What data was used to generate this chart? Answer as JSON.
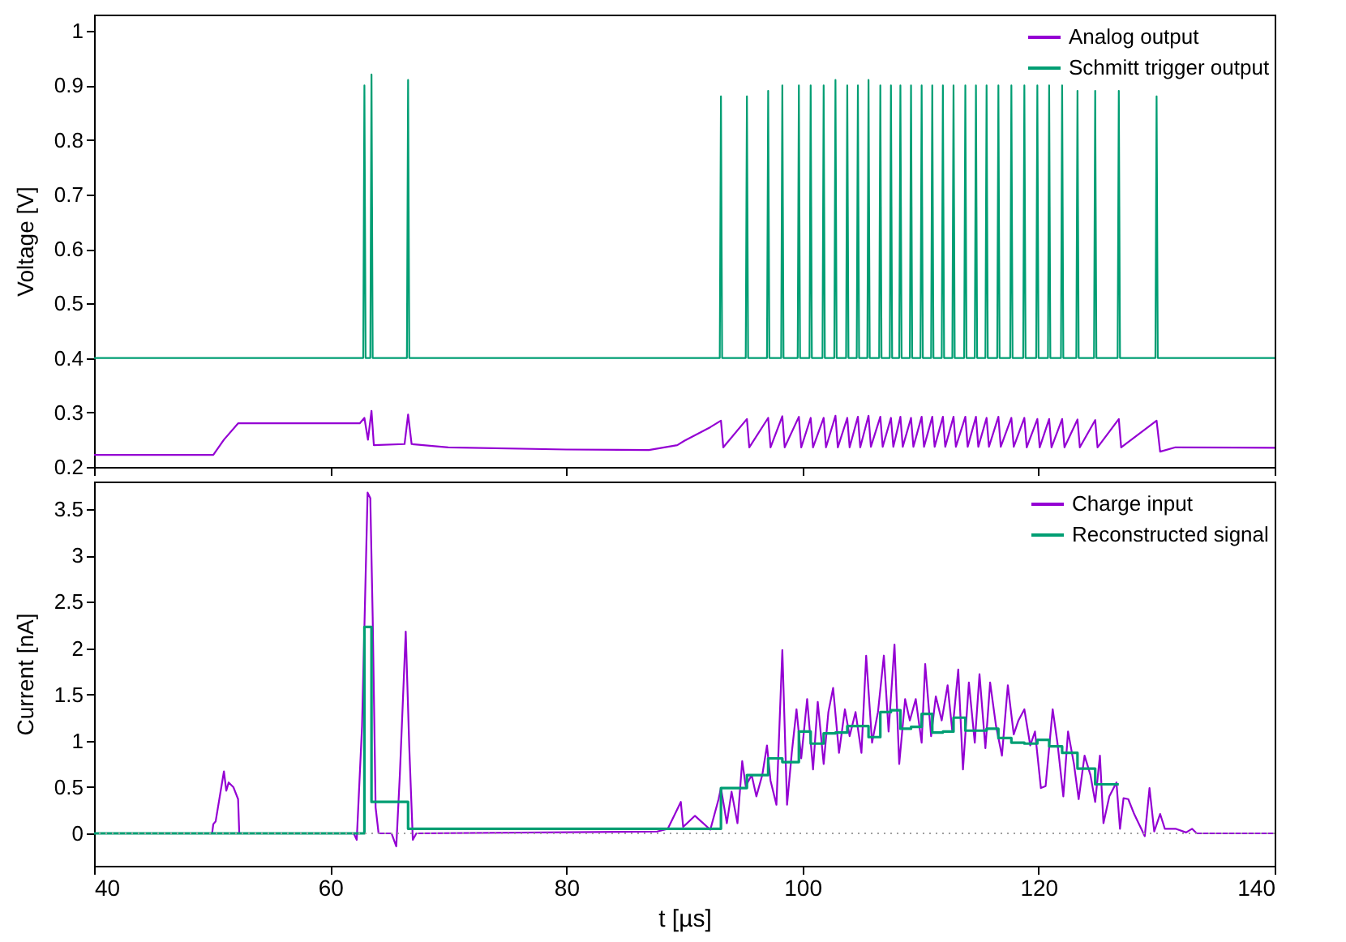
{
  "chart_data": [
    {
      "type": "line",
      "ylabel": "Voltage [V]",
      "xlim": [
        40,
        140
      ],
      "xticks": [
        40,
        60,
        80,
        100,
        120,
        140
      ],
      "ylim": [
        0.2,
        1.03
      ],
      "yticks": [
        0.2,
        0.3,
        0.4,
        0.5,
        0.6,
        0.7,
        0.8,
        0.9,
        1
      ],
      "tick_labels": "y",
      "legend": "top right",
      "series": [
        {
          "name": "Analog output",
          "type": "line",
          "color": "#9400d3",
          "x": [
            40,
            50.1,
            51,
            52.2,
            62.5,
            62.9,
            63.2,
            63.5,
            63.7,
            66.3,
            66.6,
            66.9,
            70,
            80,
            87,
            89.4,
            90,
            92.2,
            93.1,
            93.3,
            95.3,
            95.5,
            97.1,
            97.3,
            98.3,
            98.5,
            99.7,
            99.9,
            100.7,
            100.9,
            101.8,
            102.0,
            102.8,
            103.0,
            103.8,
            104.0,
            104.7,
            104.9,
            105.6,
            105.8,
            106.6,
            106.8,
            107.5,
            107.7,
            108.3,
            108.5,
            109.2,
            109.4,
            110.1,
            110.3,
            111.0,
            111.2,
            111.9,
            112.1,
            112.8,
            113.0,
            113.8,
            114.0,
            114.7,
            114.9,
            115.6,
            115.8,
            116.6,
            116.8,
            117.7,
            117.9,
            118.8,
            119.0,
            119.9,
            120.1,
            120.9,
            121.1,
            122.0,
            122.2,
            123.3,
            123.5,
            124.8,
            125.0,
            126.8,
            127.0,
            130.0,
            130.3,
            131.6,
            140
          ],
          "values": [
            0.222,
            0.222,
            0.25,
            0.28,
            0.28,
            0.29,
            0.25,
            0.303,
            0.24,
            0.242,
            0.296,
            0.242,
            0.236,
            0.232,
            0.231,
            0.24,
            0.248,
            0.273,
            0.285,
            0.236,
            0.288,
            0.236,
            0.29,
            0.236,
            0.293,
            0.236,
            0.292,
            0.236,
            0.29,
            0.236,
            0.29,
            0.236,
            0.294,
            0.236,
            0.29,
            0.236,
            0.292,
            0.236,
            0.294,
            0.237,
            0.292,
            0.237,
            0.29,
            0.237,
            0.292,
            0.237,
            0.29,
            0.237,
            0.292,
            0.237,
            0.292,
            0.237,
            0.292,
            0.237,
            0.292,
            0.237,
            0.292,
            0.237,
            0.292,
            0.237,
            0.29,
            0.237,
            0.292,
            0.237,
            0.29,
            0.237,
            0.29,
            0.236,
            0.288,
            0.236,
            0.288,
            0.236,
            0.288,
            0.236,
            0.287,
            0.236,
            0.286,
            0.236,
            0.288,
            0.236,
            0.285,
            0.228,
            0.236,
            0.235
          ]
        },
        {
          "name": "Schmitt trigger output",
          "type": "line",
          "color": "#009e73",
          "x": [
            40,
            62.8,
            62.9,
            63.0,
            63.4,
            63.5,
            63.6,
            66.5,
            66.6,
            66.7,
            93.0,
            93.1,
            93.2,
            95.2,
            95.3,
            95.4,
            97.0,
            97.1,
            97.2,
            98.2,
            98.3,
            98.4,
            99.6,
            99.7,
            99.8,
            100.6,
            100.7,
            100.8,
            101.7,
            101.8,
            101.9,
            102.7,
            102.8,
            102.9,
            103.7,
            103.8,
            103.9,
            104.6,
            104.7,
            104.8,
            105.5,
            105.6,
            105.7,
            106.5,
            106.6,
            106.7,
            107.4,
            107.5,
            107.6,
            108.2,
            108.3,
            108.4,
            109.1,
            109.2,
            109.3,
            110.0,
            110.1,
            110.2,
            110.9,
            111.0,
            111.1,
            111.8,
            111.9,
            112.0,
            112.7,
            112.8,
            112.9,
            113.7,
            113.8,
            113.9,
            114.6,
            114.7,
            114.8,
            115.5,
            115.6,
            115.7,
            116.5,
            116.6,
            116.7,
            117.6,
            117.7,
            117.8,
            118.7,
            118.8,
            118.9,
            119.8,
            119.9,
            120.0,
            120.8,
            120.9,
            121.0,
            121.9,
            122.0,
            122.1,
            123.2,
            123.3,
            123.4,
            124.7,
            124.8,
            124.9,
            126.7,
            126.8,
            126.9,
            129.9,
            130.0,
            130.1,
            140
          ],
          "values": [
            0.4,
            0.4,
            0.9,
            0.4,
            0.4,
            0.92,
            0.4,
            0.4,
            0.91,
            0.4,
            0.4,
            0.88,
            0.4,
            0.4,
            0.88,
            0.4,
            0.4,
            0.89,
            0.4,
            0.4,
            0.9,
            0.4,
            0.4,
            0.9,
            0.4,
            0.4,
            0.9,
            0.4,
            0.4,
            0.9,
            0.4,
            0.4,
            0.91,
            0.4,
            0.4,
            0.9,
            0.4,
            0.4,
            0.9,
            0.4,
            0.4,
            0.91,
            0.4,
            0.4,
            0.9,
            0.4,
            0.4,
            0.9,
            0.4,
            0.4,
            0.9,
            0.4,
            0.4,
            0.9,
            0.4,
            0.4,
            0.9,
            0.4,
            0.4,
            0.9,
            0.4,
            0.4,
            0.9,
            0.4,
            0.4,
            0.9,
            0.4,
            0.4,
            0.9,
            0.4,
            0.4,
            0.9,
            0.4,
            0.4,
            0.9,
            0.4,
            0.4,
            0.9,
            0.4,
            0.4,
            0.9,
            0.4,
            0.4,
            0.9,
            0.4,
            0.4,
            0.9,
            0.4,
            0.4,
            0.9,
            0.4,
            0.4,
            0.9,
            0.4,
            0.4,
            0.89,
            0.4,
            0.4,
            0.89,
            0.4,
            0.4,
            0.89,
            0.4,
            0.4,
            0.88,
            0.4,
            0.4
          ]
        }
      ]
    },
    {
      "type": "line",
      "xlabel": "t [µs]",
      "ylabel": "Current [nA]",
      "xlim": [
        40,
        140
      ],
      "xticks": [
        40,
        60,
        80,
        100,
        120,
        140
      ],
      "ylim": [
        -0.35,
        3.8
      ],
      "yticks": [
        0,
        0.5,
        1,
        1.5,
        2,
        2.5,
        3,
        3.5
      ],
      "legend": "top right",
      "ref_lines": [
        {
          "axis": "y",
          "value": 0,
          "color": "#a0a0a0",
          "line_style": "dotted"
        }
      ],
      "series": [
        {
          "name": "Charge input",
          "type": "line",
          "color": "#9400d3",
          "x": [
            40,
            50.0,
            50.1,
            50.3,
            51.0,
            51.2,
            51.4,
            51.8,
            52.2,
            52.3,
            62.0,
            62.25,
            62.7,
            63.17,
            63.4,
            63.6,
            63.85,
            64.1,
            65.2,
            65.6,
            65.9,
            66.4,
            66.7,
            67.0,
            67.3,
            87.7,
            88.6,
            89.7,
            89.9,
            90.9,
            92.2,
            92.9,
            93.1,
            93.6,
            94.0,
            94.5,
            94.9,
            95.2,
            95.7,
            96.1,
            96.6,
            97.0,
            97.3,
            97.8,
            98.3,
            98.7,
            99.1,
            99.5,
            99.9,
            100.4,
            100.9,
            101.3,
            101.8,
            102.2,
            102.6,
            103.1,
            103.6,
            104.0,
            104.5,
            105.0,
            105.4,
            105.9,
            106.4,
            106.9,
            107.3,
            107.8,
            108.2,
            108.7,
            109.1,
            109.6,
            110.1,
            110.4,
            110.9,
            111.3,
            111.8,
            112.3,
            112.7,
            113.2,
            113.6,
            114.1,
            114.6,
            115.0,
            115.5,
            115.9,
            116.4,
            116.9,
            117.4,
            117.9,
            118.3,
            118.8,
            119.3,
            119.7,
            120.2,
            120.6,
            121.2,
            121.6,
            122.1,
            122.5,
            123.0,
            123.4,
            123.9,
            124.4,
            124.8,
            125.2,
            125.5,
            126.0,
            126.6,
            126.9,
            127.2,
            127.6,
            128.1,
            128.7,
            129.0,
            129.4,
            129.8,
            130.3,
            130.7,
            131.6,
            132.5,
            133.0,
            133.4,
            139.9,
            140
          ],
          "values": [
            0,
            0,
            0.1,
            0.13,
            0.67,
            0.46,
            0.55,
            0.5,
            0.37,
            0,
            0,
            -0.07,
            1.16,
            3.68,
            3.62,
            2.34,
            0.28,
            0,
            0,
            -0.14,
            0.63,
            2.18,
            0.93,
            -0.07,
            0,
            0.02,
            0.05,
            0.34,
            0.07,
            0.19,
            0.04,
            0.37,
            0.49,
            0.11,
            0.45,
            0.11,
            0.78,
            0.51,
            0.63,
            0.4,
            0.63,
            0.95,
            0.57,
            0.31,
            1.98,
            0.31,
            0.87,
            1.34,
            0.81,
            1.45,
            0.69,
            1.42,
            0.75,
            1.31,
            1.57,
            0.87,
            1.34,
            1.05,
            1.31,
            0.87,
            1.92,
            0.98,
            1.31,
            1.92,
            1.1,
            2.04,
            0.75,
            1.45,
            1.22,
            1.45,
            0.98,
            1.83,
            1.05,
            1.48,
            1.22,
            1.6,
            1.1,
            1.77,
            0.69,
            1.63,
            0.98,
            1.72,
            0.92,
            1.63,
            1.16,
            0.84,
            1.6,
            1.07,
            1.22,
            1.34,
            0.95,
            1.1,
            0.49,
            0.51,
            1.34,
            0.98,
            0.4,
            1.1,
            0.75,
            0.37,
            0.84,
            0.63,
            0.34,
            0.84,
            0.11,
            0.4,
            0.55,
            0.05,
            0.38,
            0.37,
            0.21,
            0.05,
            -0.03,
            0.49,
            0.02,
            0.21,
            0.05,
            0.05,
            0.01,
            0.05,
            0,
            0,
            0
          ]
        },
        {
          "name": "Reconstructed signal",
          "type": "step",
          "color": "#009e73",
          "x": [
            40,
            62.9,
            63.5,
            66.6,
            93.1,
            95.3,
            97.1,
            98.3,
            99.7,
            100.7,
            101.8,
            102.8,
            103.8,
            104.7,
            105.6,
            106.6,
            107.5,
            108.3,
            109.2,
            110.1,
            111.0,
            111.9,
            112.8,
            113.8,
            114.7,
            115.6,
            116.6,
            117.7,
            118.8,
            119.9,
            120.9,
            122.0,
            123.3,
            124.8,
            126.8
          ],
          "values": [
            0,
            2.23,
            0.34,
            0.05,
            0.49,
            0.63,
            0.81,
            0.77,
            1.1,
            0.97,
            1.08,
            1.09,
            1.16,
            1.16,
            1.04,
            1.31,
            1.33,
            1.13,
            1.15,
            1.29,
            1.09,
            1.1,
            1.25,
            1.11,
            1.11,
            1.13,
            1.03,
            0.98,
            0.97,
            1.01,
            0.94,
            0.87,
            0.7,
            0.53,
            0.53
          ]
        }
      ]
    }
  ]
}
